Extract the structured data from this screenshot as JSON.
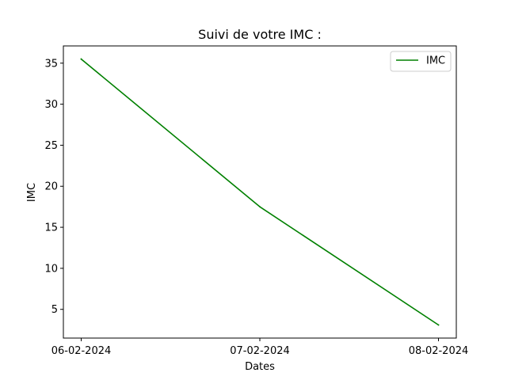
{
  "chart_data": {
    "type": "line",
    "title": "Suivi de votre IMC :",
    "xlabel": "Dates",
    "ylabel": "IMC",
    "categories": [
      "06-02-2024",
      "07-02-2024",
      "08-02-2024"
    ],
    "series": [
      {
        "name": "IMC",
        "color": "#008000",
        "values": [
          35.5,
          17.5,
          3.1
        ]
      }
    ],
    "yticks": [
      5,
      10,
      15,
      20,
      25,
      30,
      35
    ],
    "ylim": [
      1.5,
      37.1
    ],
    "grid": false,
    "legend": "top-right"
  }
}
